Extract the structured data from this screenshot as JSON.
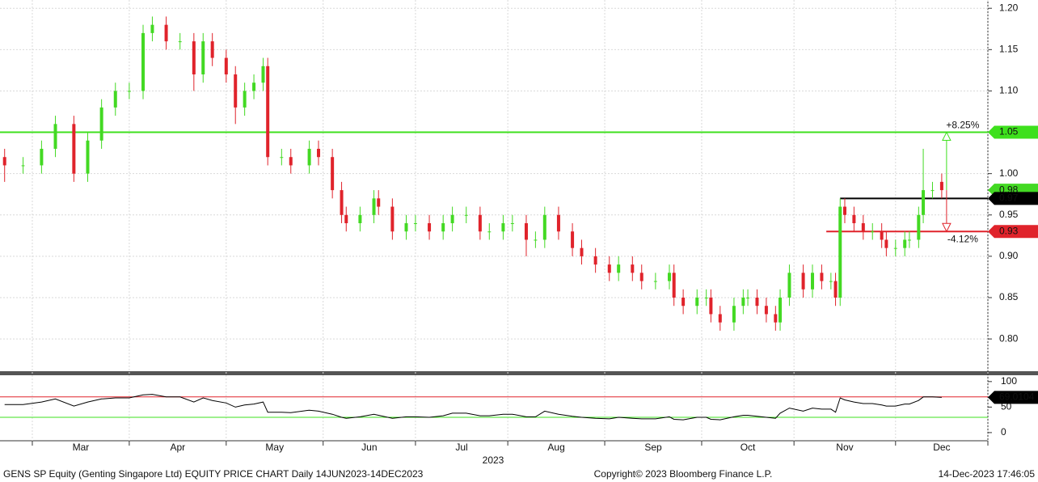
{
  "chart_data": {
    "type": "candlestick",
    "up_color": "#43d923",
    "down_color": "#e0232b",
    "xlim": [
      0,
      214
    ],
    "xticks": [
      7,
      28,
      49,
      70,
      90,
      110,
      131,
      152,
      172,
      194,
      214
    ],
    "months": [
      "Mar",
      "Apr",
      "May",
      "Jun",
      "Jul",
      "Aug",
      "Sep",
      "Oct",
      "Nov",
      "Dec"
    ],
    "year": "2023",
    "ylim": [
      0.76,
      1.21
    ],
    "yticks": [
      {
        "value": 0.8,
        "label": "0.80"
      },
      {
        "value": 0.85,
        "label": "0.85"
      },
      {
        "value": 0.9,
        "label": "0.90"
      },
      {
        "value": 0.95,
        "label": "0.95"
      },
      {
        "value": 1,
        "label": "1.00"
      },
      {
        "value": 1.05,
        "label": "1.05"
      },
      {
        "value": 1.1,
        "label": "1.10"
      },
      {
        "value": 1.15,
        "label": "1.15"
      },
      {
        "value": 1.2,
        "label": "1.20"
      }
    ],
    "grid": true,
    "x": [
      1,
      5,
      9,
      12,
      16,
      19,
      22,
      25,
      28,
      31,
      33,
      36,
      39,
      42,
      44,
      46,
      49,
      51,
      53,
      55,
      57,
      58,
      61,
      63,
      67,
      69,
      72,
      74,
      75,
      78,
      81,
      82,
      85,
      88,
      90,
      93,
      96,
      98,
      101,
      104,
      106,
      109,
      111,
      114,
      116,
      118,
      121,
      124,
      126,
      129,
      132,
      134,
      137,
      139,
      142,
      145,
      146,
      148,
      151,
      153,
      154,
      156,
      159,
      161,
      162,
      164,
      166,
      168,
      169,
      171,
      174,
      176,
      178,
      180,
      181,
      182,
      183,
      185,
      187,
      189,
      191,
      192,
      194,
      196,
      197,
      199,
      200,
      202,
      204
    ],
    "open": [
      1.02,
      1.01,
      1.01,
      1.03,
      1.06,
      1.0,
      1.04,
      1.08,
      1.1,
      1.1,
      1.17,
      1.18,
      1.16,
      1.16,
      1.12,
      1.16,
      1.14,
      1.12,
      1.08,
      1.1,
      1.11,
      1.13,
      1.02,
      1.02,
      1.01,
      1.03,
      1.02,
      0.98,
      0.95,
      0.94,
      0.95,
      0.97,
      0.96,
      0.93,
      0.94,
      0.94,
      0.93,
      0.94,
      0.95,
      0.95,
      0.93,
      0.93,
      0.94,
      0.94,
      0.92,
      0.92,
      0.95,
      0.93,
      0.91,
      0.9,
      0.89,
      0.88,
      0.89,
      0.88,
      0.87,
      0.87,
      0.88,
      0.85,
      0.84,
      0.85,
      0.85,
      0.83,
      0.82,
      0.84,
      0.85,
      0.85,
      0.84,
      0.83,
      0.82,
      0.85,
      0.88,
      0.86,
      0.88,
      0.87,
      0.87,
      0.85,
      0.96,
      0.95,
      0.94,
      0.93,
      0.93,
      0.92,
      0.91,
      0.91,
      0.92,
      0.92,
      0.95,
      0.98,
      0.99
    ],
    "high": [
      1.03,
      1.02,
      1.04,
      1.07,
      1.07,
      1.05,
      1.09,
      1.11,
      1.11,
      1.18,
      1.19,
      1.19,
      1.17,
      1.17,
      1.17,
      1.17,
      1.15,
      1.13,
      1.11,
      1.12,
      1.14,
      1.14,
      1.03,
      1.03,
      1.04,
      1.04,
      1.03,
      0.99,
      0.96,
      0.96,
      0.98,
      0.98,
      0.97,
      0.95,
      0.95,
      0.95,
      0.95,
      0.96,
      0.96,
      0.96,
      0.94,
      0.95,
      0.95,
      0.95,
      0.93,
      0.96,
      0.96,
      0.94,
      0.92,
      0.91,
      0.9,
      0.9,
      0.9,
      0.89,
      0.88,
      0.89,
      0.89,
      0.86,
      0.86,
      0.86,
      0.86,
      0.84,
      0.85,
      0.86,
      0.86,
      0.86,
      0.85,
      0.84,
      0.86,
      0.89,
      0.89,
      0.89,
      0.89,
      0.88,
      0.88,
      0.97,
      0.97,
      0.96,
      0.95,
      0.94,
      0.94,
      0.93,
      0.92,
      0.93,
      0.93,
      0.96,
      1.03,
      0.99,
      1.0
    ],
    "low": [
      0.99,
      1.0,
      1.0,
      1.02,
      0.99,
      0.99,
      1.03,
      1.07,
      1.09,
      1.09,
      1.16,
      1.15,
      1.15,
      1.1,
      1.11,
      1.13,
      1.11,
      1.06,
      1.07,
      1.09,
      1.1,
      1.01,
      1.01,
      1.0,
      1.0,
      1.01,
      0.97,
      0.94,
      0.93,
      0.93,
      0.94,
      0.95,
      0.92,
      0.92,
      0.93,
      0.92,
      0.92,
      0.93,
      0.94,
      0.92,
      0.92,
      0.92,
      0.93,
      0.9,
      0.91,
      0.91,
      0.92,
      0.9,
      0.89,
      0.88,
      0.87,
      0.87,
      0.87,
      0.86,
      0.86,
      0.86,
      0.84,
      0.83,
      0.83,
      0.84,
      0.82,
      0.81,
      0.81,
      0.83,
      0.84,
      0.83,
      0.82,
      0.81,
      0.81,
      0.84,
      0.85,
      0.85,
      0.86,
      0.86,
      0.84,
      0.84,
      0.94,
      0.93,
      0.92,
      0.92,
      0.91,
      0.9,
      0.9,
      0.9,
      0.91,
      0.91,
      0.94,
      0.97,
      0.97
    ],
    "close": [
      1.01,
      1.01,
      1.03,
      1.06,
      1.0,
      1.04,
      1.08,
      1.1,
      1.1,
      1.17,
      1.18,
      1.16,
      1.16,
      1.12,
      1.16,
      1.14,
      1.12,
      1.08,
      1.1,
      1.11,
      1.13,
      1.02,
      1.02,
      1.01,
      1.03,
      1.02,
      0.98,
      0.95,
      0.94,
      0.95,
      0.97,
      0.96,
      0.93,
      0.94,
      0.94,
      0.93,
      0.94,
      0.95,
      0.95,
      0.93,
      0.93,
      0.94,
      0.94,
      0.92,
      0.92,
      0.95,
      0.93,
      0.91,
      0.9,
      0.89,
      0.88,
      0.89,
      0.88,
      0.87,
      0.87,
      0.88,
      0.85,
      0.84,
      0.85,
      0.85,
      0.83,
      0.82,
      0.84,
      0.85,
      0.85,
      0.84,
      0.83,
      0.82,
      0.85,
      0.88,
      0.86,
      0.88,
      0.87,
      0.87,
      0.85,
      0.96,
      0.95,
      0.94,
      0.93,
      0.93,
      0.92,
      0.91,
      0.91,
      0.92,
      0.92,
      0.95,
      0.98,
      0.98,
      0.98
    ],
    "levels": [
      {
        "value": 1.05,
        "color": "#3ee01d",
        "start": 0,
        "change": "+8.25%"
      },
      {
        "value": 0.97,
        "color": "#000000",
        "start": 182
      },
      {
        "value": 0.93,
        "color": "#e0232b",
        "start": 179,
        "change": "-4.12%"
      }
    ],
    "rsi": {
      "color": "#000000",
      "ylim": [
        -16,
        114
      ],
      "yticks": [
        0,
        50,
        100
      ],
      "overbought": 70,
      "oversold": 30,
      "values": [
        55,
        55,
        60,
        66,
        52,
        60,
        66,
        68,
        68,
        74,
        75,
        70,
        70,
        60,
        68,
        63,
        58,
        50,
        54,
        56,
        60,
        40,
        40,
        39,
        44,
        42,
        36,
        30,
        28,
        31,
        36,
        34,
        28,
        31,
        31,
        30,
        33,
        38,
        38,
        33,
        33,
        36,
        36,
        31,
        31,
        42,
        36,
        32,
        30,
        28,
        27,
        30,
        28,
        27,
        27,
        31,
        26,
        25,
        30,
        30,
        26,
        25,
        31,
        34,
        34,
        32,
        30,
        28,
        38,
        48,
        42,
        48,
        46,
        46,
        40,
        68,
        64,
        60,
        57,
        57,
        54,
        52,
        52,
        56,
        56,
        63,
        70,
        70,
        69.0104
      ]
    },
    "footer_left": "GENS SP Equity (Genting Singapore Ltd) EQUITY PRICE CHART  Daily 14JUN2023-14DEC2023",
    "footer_center": "Copyright© 2023 Bloomberg Finance L.P.",
    "footer_right": "14-Dec-2023 17:46:05"
  }
}
